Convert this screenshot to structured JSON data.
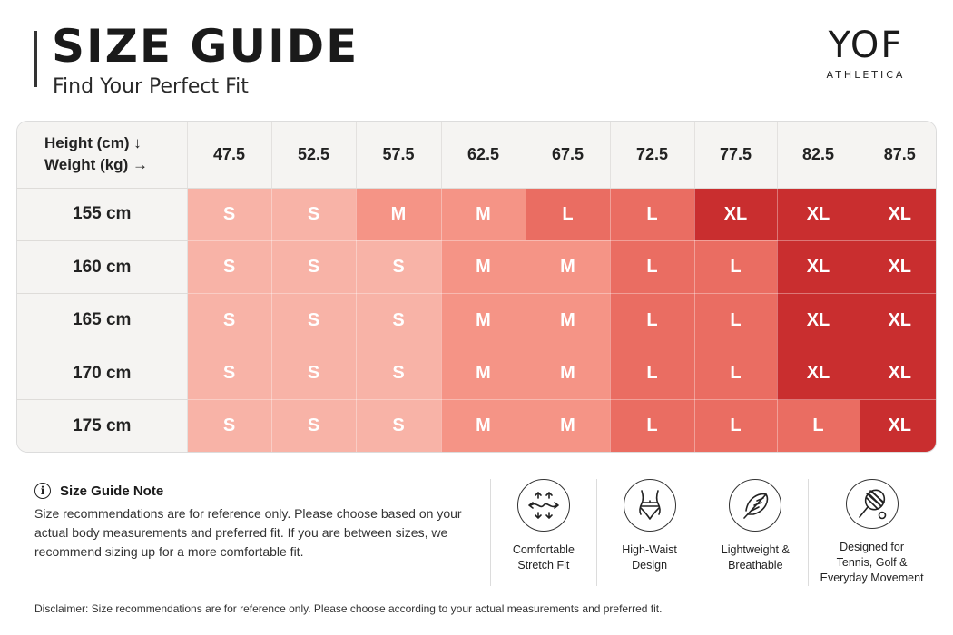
{
  "header": {
    "title": "SIZE GUIDE",
    "subtitle": "Find Your Perfect Fit"
  },
  "brand": {
    "name": "YOF",
    "tagline": "ATHLETICA"
  },
  "table": {
    "corner_line1": "Height (cm) ↓",
    "corner_line2": "Weight (kg) →",
    "weights": [
      "47.5",
      "52.5",
      "57.5",
      "62.5",
      "67.5",
      "72.5",
      "77.5",
      "82.5",
      "87.5"
    ],
    "rows": [
      {
        "height": "155 cm",
        "sizes": [
          "S",
          "S",
          "M",
          "M",
          "L",
          "L",
          "XL",
          "XL",
          "XL"
        ]
      },
      {
        "height": "160 cm",
        "sizes": [
          "S",
          "S",
          "S",
          "M",
          "M",
          "L",
          "L",
          "XL",
          "XL"
        ]
      },
      {
        "height": "165 cm",
        "sizes": [
          "S",
          "S",
          "S",
          "M",
          "M",
          "L",
          "L",
          "XL",
          "XL"
        ]
      },
      {
        "height": "170 cm",
        "sizes": [
          "S",
          "S",
          "S",
          "M",
          "M",
          "L",
          "L",
          "XL",
          "XL"
        ]
      },
      {
        "height": "175 cm",
        "sizes": [
          "S",
          "S",
          "S",
          "M",
          "M",
          "L",
          "L",
          "L",
          "XL"
        ]
      }
    ]
  },
  "note": {
    "icon": "info-icon",
    "title": "Size Guide Note",
    "text": "Size recommendations are for reference only. Please choose based on your actual body measurements and preferred fit. If you are between sizes, we recommend sizing up for a more comfortable fit."
  },
  "features": [
    {
      "icon": "stretch-arrows-icon",
      "label_line1": "Comfortable",
      "label_line2": "Stretch Fit",
      "label_line3": ""
    },
    {
      "icon": "high-waist-icon",
      "label_line1": "High-Waist",
      "label_line2": "Design",
      "label_line3": ""
    },
    {
      "icon": "feather-icon",
      "label_line1": "Lightweight &",
      "label_line2": "Breathable",
      "label_line3": ""
    },
    {
      "icon": "tennis-racket-icon",
      "label_line1": "Designed for",
      "label_line2": "Tennis, Golf &",
      "label_line3": "Everyday Movement"
    }
  ],
  "disclaimer": "Disclaimer: Size recommendations are for reference only. Please choose according to your actual measurements and preferred fit.",
  "colors": {
    "S": "#f8b3a7",
    "M": "#f59486",
    "L": "#ea6d62",
    "XL": "#c92e2f"
  }
}
